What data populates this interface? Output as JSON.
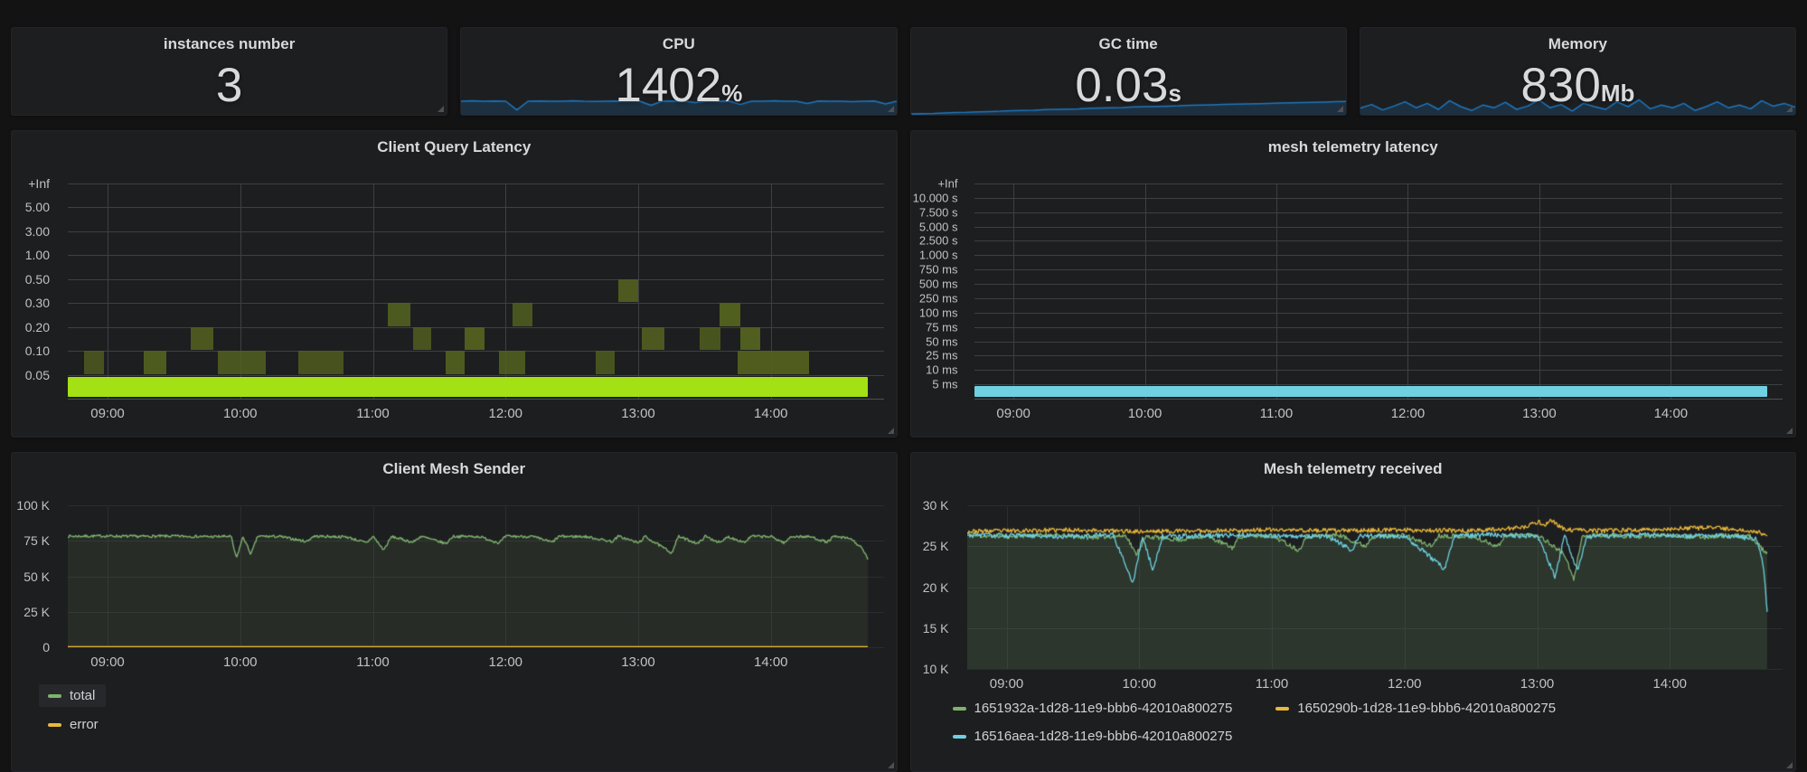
{
  "page": {
    "background": "#131314",
    "panel_background": "#1d1e20"
  },
  "stats": [
    {
      "title": "instances number",
      "value": "3",
      "unit": "",
      "sparkline": null
    },
    {
      "title": "CPU",
      "value": "1402",
      "unit": "%",
      "sparkline": {
        "color": "#1F78C1",
        "fill": "rgba(31,120,193,0.20)",
        "points": [
          0.5,
          0.52,
          0.5,
          0.51,
          0.5,
          0.18,
          0.5,
          0.51,
          0.5,
          0.5,
          0.52,
          0.5,
          0.49,
          0.5,
          0.51,
          0.5,
          0.5,
          0.35,
          0.5,
          0.51,
          0.5,
          0.45,
          0.5,
          0.5,
          0.51,
          0.38,
          0.5,
          0.5,
          0.52,
          0.5,
          0.5,
          0.42,
          0.51,
          0.5,
          0.5,
          0.48,
          0.5,
          0.51,
          0.4,
          0.5
        ]
      }
    },
    {
      "title": "GC time",
      "value": "0.03",
      "unit": "s",
      "sparkline": {
        "color": "#1F78C1",
        "fill": "rgba(31,120,193,0.20)",
        "points": [
          0.03,
          0.04,
          0.05,
          0.07,
          0.08,
          0.09,
          0.11,
          0.12,
          0.13,
          0.15,
          0.16,
          0.17,
          0.19,
          0.2,
          0.21,
          0.22,
          0.24,
          0.25,
          0.26,
          0.27,
          0.29,
          0.3,
          0.31,
          0.32,
          0.33,
          0.35,
          0.36,
          0.37,
          0.38,
          0.39,
          0.4,
          0.41,
          0.42,
          0.43,
          0.44,
          0.45,
          0.46,
          0.47,
          0.48,
          0.49
        ]
      }
    },
    {
      "title": "Memory",
      "value": "830",
      "unit": "Mb",
      "sparkline": {
        "color": "#1F78C1",
        "fill": "rgba(31,120,193,0.20)",
        "points": [
          0.25,
          0.38,
          0.18,
          0.32,
          0.48,
          0.26,
          0.42,
          0.2,
          0.52,
          0.3,
          0.16,
          0.36,
          0.26,
          0.46,
          0.2,
          0.32,
          0.55,
          0.26,
          0.38,
          0.14,
          0.42,
          0.3,
          0.2,
          0.48,
          0.3,
          0.55,
          0.22,
          0.36,
          0.26,
          0.42,
          0.16,
          0.3,
          0.48,
          0.26,
          0.36,
          0.22,
          0.52,
          0.32,
          0.42,
          0.28
        ]
      }
    }
  ],
  "chart_data": [
    {
      "type": "heatmap",
      "title": "Client Query Latency",
      "x": {
        "range": [
          8.7,
          14.85
        ],
        "data_end": 14.73,
        "ticks": [
          {
            "hour": 9,
            "label": "09:00"
          },
          {
            "hour": 10,
            "label": "10:00"
          },
          {
            "hour": 11,
            "label": "11:00"
          },
          {
            "hour": 12,
            "label": "12:00"
          },
          {
            "hour": 13,
            "label": "13:00"
          },
          {
            "hour": 14,
            "label": "14:00"
          }
        ]
      },
      "y": {
        "ticks": [
          "+Inf",
          "5.00",
          "3.00",
          "1.00",
          "0.50",
          "0.30",
          "0.20",
          "0.10",
          "0.05"
        ]
      },
      "band": {
        "below_label": "0.05",
        "start": 8.7,
        "end": 14.73,
        "color": "#A3E114"
      },
      "cells_color": "#52601F",
      "cell_rows": [
        "0.05-0.10",
        "0.10-0.20",
        "0.20-0.30",
        "0.30-0.50"
      ],
      "cells": [
        {
          "from": 8.82,
          "to": 8.97,
          "row": 0
        },
        {
          "from": 9.27,
          "to": 9.44,
          "row": 0
        },
        {
          "from": 9.83,
          "to": 10.19,
          "row": 0
        },
        {
          "from": 10.44,
          "to": 10.78,
          "row": 0
        },
        {
          "from": 11.55,
          "to": 11.69,
          "row": 0
        },
        {
          "from": 11.95,
          "to": 12.15,
          "row": 0
        },
        {
          "from": 12.68,
          "to": 12.82,
          "row": 0
        },
        {
          "from": 13.75,
          "to": 14.29,
          "row": 0
        },
        {
          "from": 9.63,
          "to": 9.8,
          "row": 1
        },
        {
          "from": 11.3,
          "to": 11.44,
          "row": 1
        },
        {
          "from": 11.69,
          "to": 11.84,
          "row": 1
        },
        {
          "from": 13.03,
          "to": 13.2,
          "row": 1
        },
        {
          "from": 13.46,
          "to": 13.62,
          "row": 1
        },
        {
          "from": 13.77,
          "to": 13.92,
          "row": 1
        },
        {
          "from": 11.11,
          "to": 11.28,
          "row": 2
        },
        {
          "from": 12.05,
          "to": 12.2,
          "row": 2
        },
        {
          "from": 13.61,
          "to": 13.77,
          "row": 2
        },
        {
          "from": 12.85,
          "to": 13.0,
          "row": 3
        }
      ]
    },
    {
      "type": "heatmap",
      "title": "mesh telemetry latency",
      "x": {
        "range": [
          8.7,
          14.85
        ],
        "data_end": 14.73,
        "ticks": [
          {
            "hour": 9,
            "label": "09:00"
          },
          {
            "hour": 10,
            "label": "10:00"
          },
          {
            "hour": 11,
            "label": "11:00"
          },
          {
            "hour": 12,
            "label": "12:00"
          },
          {
            "hour": 13,
            "label": "13:00"
          },
          {
            "hour": 14,
            "label": "14:00"
          }
        ]
      },
      "y": {
        "ticks": [
          "+Inf",
          "10.000 s",
          "7.500 s",
          "5.000 s",
          "2.500 s",
          "1.000 s",
          "750 ms",
          "500 ms",
          "250 ms",
          "100 ms",
          "75 ms",
          "50 ms",
          "25 ms",
          "10 ms",
          "5 ms"
        ]
      },
      "band": {
        "below_label": "5 ms",
        "start": 8.7,
        "end": 14.73,
        "color": "#6ED0E0"
      },
      "cells_color": "#52601F",
      "cells": []
    },
    {
      "type": "line",
      "title": "Client Mesh Sender",
      "x": {
        "range": [
          8.7,
          14.85
        ],
        "data_end": 14.73,
        "ticks": [
          {
            "hour": 9,
            "label": "09:00"
          },
          {
            "hour": 10,
            "label": "10:00"
          },
          {
            "hour": 11,
            "label": "11:00"
          },
          {
            "hour": 12,
            "label": "12:00"
          },
          {
            "hour": 13,
            "label": "13:00"
          },
          {
            "hour": 14,
            "label": "14:00"
          }
        ]
      },
      "y": {
        "range": [
          0,
          100000
        ],
        "ticks": [
          {
            "v": 100000,
            "label": "100 K"
          },
          {
            "v": 75000,
            "label": "75 K"
          },
          {
            "v": 50000,
            "label": "50 K"
          },
          {
            "v": 25000,
            "label": "25 K"
          },
          {
            "v": 0,
            "label": "0"
          }
        ]
      },
      "legend_position": "bottom-left-vertical",
      "series": [
        {
          "name": "total",
          "color": "#7EB26D",
          "fill": "rgba(126,178,109,0.10)",
          "noise": 900,
          "seed": 7,
          "width": 1.4,
          "points": [
            [
              8.7,
              78200
            ],
            [
              9.0,
              78400
            ],
            [
              9.2,
              78100
            ],
            [
              9.5,
              78300
            ],
            [
              9.8,
              77900
            ],
            [
              9.93,
              78200
            ],
            [
              9.97,
              62500
            ],
            [
              10.02,
              78000
            ],
            [
              10.08,
              65500
            ],
            [
              10.13,
              78200
            ],
            [
              10.3,
              78000
            ],
            [
              10.5,
              74500
            ],
            [
              10.55,
              78200
            ],
            [
              10.8,
              77800
            ],
            [
              10.95,
              73500
            ],
            [
              11.0,
              78200
            ],
            [
              11.08,
              68500
            ],
            [
              11.14,
              78000
            ],
            [
              11.3,
              74000
            ],
            [
              11.36,
              78200
            ],
            [
              11.55,
              73000
            ],
            [
              11.6,
              78100
            ],
            [
              11.8,
              78000
            ],
            [
              11.95,
              73500
            ],
            [
              12.0,
              78200
            ],
            [
              12.2,
              78000
            ],
            [
              12.35,
              74000
            ],
            [
              12.4,
              78100
            ],
            [
              12.6,
              78000
            ],
            [
              12.8,
              74500
            ],
            [
              12.85,
              78200
            ],
            [
              13.0,
              73500
            ],
            [
              13.05,
              78000
            ],
            [
              13.25,
              66500
            ],
            [
              13.3,
              78100
            ],
            [
              13.45,
              73000
            ],
            [
              13.5,
              78200
            ],
            [
              13.62,
              73500
            ],
            [
              13.67,
              78000
            ],
            [
              13.8,
              74000
            ],
            [
              13.85,
              78200
            ],
            [
              14.0,
              77900
            ],
            [
              14.1,
              73500
            ],
            [
              14.15,
              78100
            ],
            [
              14.3,
              77800
            ],
            [
              14.42,
              74000
            ],
            [
              14.47,
              78000
            ],
            [
              14.6,
              76500
            ],
            [
              14.68,
              70000
            ],
            [
              14.73,
              62000
            ]
          ]
        },
        {
          "name": "error",
          "color": "#EAB839",
          "noise": 0,
          "seed": 3,
          "width": 1.4,
          "points": [
            [
              8.7,
              300
            ],
            [
              14.73,
              300
            ]
          ]
        }
      ]
    },
    {
      "type": "line",
      "title": "Mesh telemetry received",
      "x": {
        "range": [
          8.7,
          14.85
        ],
        "data_end": 14.73,
        "ticks": [
          {
            "hour": 9,
            "label": "09:00"
          },
          {
            "hour": 10,
            "label": "10:00"
          },
          {
            "hour": 11,
            "label": "11:00"
          },
          {
            "hour": 12,
            "label": "12:00"
          },
          {
            "hour": 13,
            "label": "13:00"
          },
          {
            "hour": 14,
            "label": "14:00"
          }
        ]
      },
      "y": {
        "range": [
          10000,
          30000
        ],
        "ticks": [
          {
            "v": 30000,
            "label": "30 K"
          },
          {
            "v": 25000,
            "label": "25 K"
          },
          {
            "v": 20000,
            "label": "20 K"
          },
          {
            "v": 15000,
            "label": "15 K"
          },
          {
            "v": 10000,
            "label": "10 K"
          }
        ]
      },
      "legend_position": "bottom-two-columns",
      "series": [
        {
          "name": "1651932a-1d28-11e9-bbb6-42010a800275",
          "color": "#7EB26D",
          "fill": "rgba(126,178,109,0.16)",
          "noise": 280,
          "seed": 11,
          "width": 1.3,
          "points": [
            [
              8.7,
              26300
            ],
            [
              9.0,
              26200
            ],
            [
              9.3,
              26400
            ],
            [
              9.6,
              26100
            ],
            [
              9.9,
              26300
            ],
            [
              9.97,
              24000
            ],
            [
              10.05,
              26200
            ],
            [
              10.3,
              25800
            ],
            [
              10.5,
              26300
            ],
            [
              10.7,
              24800
            ],
            [
              10.75,
              26200
            ],
            [
              11.0,
              26300
            ],
            [
              11.2,
              24500
            ],
            [
              11.25,
              26200
            ],
            [
              11.5,
              26400
            ],
            [
              11.7,
              25000
            ],
            [
              11.75,
              26200
            ],
            [
              12.0,
              26300
            ],
            [
              12.2,
              25000
            ],
            [
              12.25,
              26300
            ],
            [
              12.5,
              26200
            ],
            [
              12.7,
              25000
            ],
            [
              12.75,
              26300
            ],
            [
              13.0,
              26400
            ],
            [
              13.2,
              24000
            ],
            [
              13.27,
              20800
            ],
            [
              13.33,
              26200
            ],
            [
              13.5,
              26300
            ],
            [
              13.8,
              26200
            ],
            [
              14.0,
              26400
            ],
            [
              14.2,
              26100
            ],
            [
              14.4,
              26300
            ],
            [
              14.6,
              26200
            ],
            [
              14.73,
              24000
            ]
          ]
        },
        {
          "name": "1650290b-1d28-11e9-bbb6-42010a800275",
          "color": "#EAB839",
          "noise": 260,
          "seed": 23,
          "width": 1.3,
          "points": [
            [
              8.7,
              26800
            ],
            [
              9.0,
              26900
            ],
            [
              9.5,
              27000
            ],
            [
              10.0,
              26800
            ],
            [
              10.5,
              26900
            ],
            [
              11.0,
              27000
            ],
            [
              11.5,
              26900
            ],
            [
              12.0,
              27000
            ],
            [
              12.5,
              26900
            ],
            [
              12.9,
              27300
            ],
            [
              13.0,
              28000
            ],
            [
              13.05,
              27600
            ],
            [
              13.1,
              28200
            ],
            [
              13.2,
              27000
            ],
            [
              13.5,
              26900
            ],
            [
              14.0,
              27100
            ],
            [
              14.3,
              27300
            ],
            [
              14.5,
              27000
            ],
            [
              14.65,
              26800
            ],
            [
              14.73,
              26300
            ]
          ]
        },
        {
          "name": "16516aea-1d28-11e9-bbb6-42010a800275",
          "color": "#6ED0E0",
          "noise": 300,
          "seed": 31,
          "width": 1.3,
          "points": [
            [
              8.7,
              26400
            ],
            [
              9.0,
              26300
            ],
            [
              9.4,
              26200
            ],
            [
              9.8,
              26400
            ],
            [
              9.95,
              20500
            ],
            [
              10.02,
              26300
            ],
            [
              10.1,
              22000
            ],
            [
              10.17,
              26200
            ],
            [
              10.5,
              26300
            ],
            [
              10.8,
              26400
            ],
            [
              11.1,
              26200
            ],
            [
              11.4,
              26300
            ],
            [
              11.6,
              24500
            ],
            [
              11.65,
              26300
            ],
            [
              12.0,
              26200
            ],
            [
              12.3,
              22200
            ],
            [
              12.37,
              26300
            ],
            [
              12.7,
              26400
            ],
            [
              13.0,
              26200
            ],
            [
              13.13,
              21200
            ],
            [
              13.2,
              26300
            ],
            [
              13.3,
              22000
            ],
            [
              13.37,
              26200
            ],
            [
              13.6,
              26300
            ],
            [
              13.9,
              26400
            ],
            [
              14.1,
              26200
            ],
            [
              14.3,
              26300
            ],
            [
              14.5,
              26200
            ],
            [
              14.65,
              25800
            ],
            [
              14.7,
              22500
            ],
            [
              14.73,
              16500
            ]
          ]
        }
      ]
    }
  ]
}
